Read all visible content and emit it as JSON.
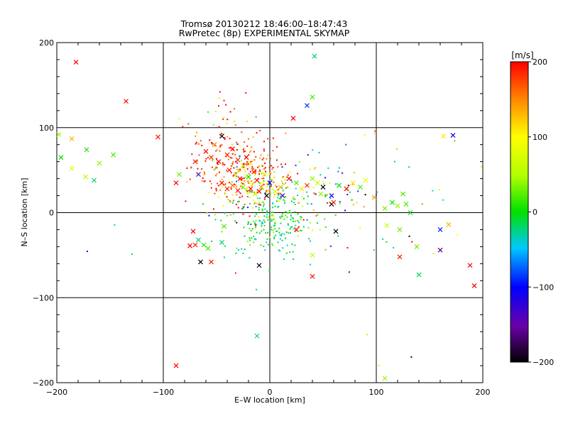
{
  "chart_data": {
    "type": "scatter",
    "title": "Tromsø 20130212 18:46:00–18:47:43",
    "subtitle": "RwPretec (8p) EXPERIMENTAL SKYMAP",
    "xlabel": "E–W location [km]",
    "ylabel": "N–S location [km]",
    "xlim": [
      -200,
      200
    ],
    "ylim": [
      -200,
      200
    ],
    "xticks": [
      "−200",
      "−100",
      "0",
      "100",
      "200"
    ],
    "yticks": [
      "−200",
      "−100",
      "0",
      "100",
      "200"
    ],
    "grid": true,
    "colorbar": {
      "label": "[m/s]",
      "range": [
        -200,
        200
      ],
      "ticks": [
        "200",
        "100",
        "0",
        "−100",
        "−200"
      ]
    },
    "crosses": [
      {
        "x": -182,
        "y": 177,
        "v": 200
      },
      {
        "x": -135,
        "y": 131,
        "v": 200
      },
      {
        "x": 42,
        "y": 184,
        "v": -20
      },
      {
        "x": 40,
        "y": 136,
        "v": 20
      },
      {
        "x": 35,
        "y": 126,
        "v": -90
      },
      {
        "x": 22,
        "y": 111,
        "v": 200
      },
      {
        "x": -198,
        "y": 92,
        "v": 40
      },
      {
        "x": -186,
        "y": 87,
        "v": 130
      },
      {
        "x": -105,
        "y": 89,
        "v": 190
      },
      {
        "x": 172,
        "y": 91,
        "v": -110
      },
      {
        "x": 163,
        "y": 90,
        "v": 110
      },
      {
        "x": -172,
        "y": 74,
        "v": 10
      },
      {
        "x": -196,
        "y": 65,
        "v": 0
      },
      {
        "x": -147,
        "y": 68,
        "v": 20
      },
      {
        "x": -160,
        "y": 58,
        "v": 40
      },
      {
        "x": -173,
        "y": 42,
        "v": 60
      },
      {
        "x": -165,
        "y": 38,
        "v": -20
      },
      {
        "x": -186,
        "y": 52,
        "v": 80
      },
      {
        "x": -85,
        "y": 45,
        "v": 30
      },
      {
        "x": -88,
        "y": 35,
        "v": 200
      },
      {
        "x": -67,
        "y": 45,
        "v": -160
      },
      {
        "x": -70,
        "y": 60,
        "v": 190
      },
      {
        "x": -60,
        "y": 72,
        "v": 200
      },
      {
        "x": -52,
        "y": 80,
        "v": 150
      },
      {
        "x": -45,
        "y": 90,
        "v": -200
      },
      {
        "x": -55,
        "y": 65,
        "v": 180
      },
      {
        "x": -48,
        "y": 60,
        "v": 200
      },
      {
        "x": -40,
        "y": 68,
        "v": 190
      },
      {
        "x": -35,
        "y": 75,
        "v": 200
      },
      {
        "x": -30,
        "y": 62,
        "v": 190
      },
      {
        "x": -25,
        "y": 55,
        "v": 60
      },
      {
        "x": -22,
        "y": 65,
        "v": 200
      },
      {
        "x": -18,
        "y": 58,
        "v": 110
      },
      {
        "x": -38,
        "y": 50,
        "v": 200
      },
      {
        "x": -32,
        "y": 45,
        "v": 120
      },
      {
        "x": -28,
        "y": 40,
        "v": 200
      },
      {
        "x": -20,
        "y": 42,
        "v": 0
      },
      {
        "x": -15,
        "y": 48,
        "v": 190
      },
      {
        "x": -12,
        "y": 38,
        "v": 200
      },
      {
        "x": -8,
        "y": 30,
        "v": 140
      },
      {
        "x": -5,
        "y": 45,
        "v": 60
      },
      {
        "x": -45,
        "y": 35,
        "v": 200
      },
      {
        "x": -40,
        "y": 28,
        "v": 190
      },
      {
        "x": -35,
        "y": 32,
        "v": 160
      },
      {
        "x": -30,
        "y": 26,
        "v": 200
      },
      {
        "x": -25,
        "y": 30,
        "v": 30
      },
      {
        "x": -18,
        "y": 28,
        "v": 200
      },
      {
        "x": -14,
        "y": 22,
        "v": 50
      },
      {
        "x": -10,
        "y": 25,
        "v": 200
      },
      {
        "x": -3,
        "y": 20,
        "v": -200
      },
      {
        "x": 0,
        "y": 35,
        "v": -100
      },
      {
        "x": 5,
        "y": 25,
        "v": 60
      },
      {
        "x": 10,
        "y": 30,
        "v": 130
      },
      {
        "x": 12,
        "y": 20,
        "v": -130
      },
      {
        "x": 18,
        "y": 40,
        "v": 200
      },
      {
        "x": 25,
        "y": 35,
        "v": 20
      },
      {
        "x": 30,
        "y": 28,
        "v": 110
      },
      {
        "x": 35,
        "y": 32,
        "v": 180
      },
      {
        "x": 40,
        "y": 40,
        "v": 40
      },
      {
        "x": 45,
        "y": 35,
        "v": 60
      },
      {
        "x": 50,
        "y": 30,
        "v": -200
      },
      {
        "x": 48,
        "y": 22,
        "v": 40
      },
      {
        "x": 58,
        "y": 20,
        "v": -110
      },
      {
        "x": 65,
        "y": 32,
        "v": 0
      },
      {
        "x": 72,
        "y": 28,
        "v": 200
      },
      {
        "x": 78,
        "y": 35,
        "v": 110
      },
      {
        "x": 85,
        "y": 30,
        "v": 20
      },
      {
        "x": 90,
        "y": 38,
        "v": 80
      },
      {
        "x": 98,
        "y": 18,
        "v": 140
      },
      {
        "x": 108,
        "y": 5,
        "v": 30
      },
      {
        "x": 115,
        "y": 12,
        "v": 0
      },
      {
        "x": 120,
        "y": 8,
        "v": 40
      },
      {
        "x": 125,
        "y": 22,
        "v": 20
      },
      {
        "x": 128,
        "y": 10,
        "v": 20
      },
      {
        "x": 132,
        "y": 0,
        "v": 0
      },
      {
        "x": 110,
        "y": -15,
        "v": 70
      },
      {
        "x": 122,
        "y": -20,
        "v": 30
      },
      {
        "x": 138,
        "y": -40,
        "v": 30
      },
      {
        "x": 168,
        "y": -14,
        "v": 130
      },
      {
        "x": 160,
        "y": -20,
        "v": -90
      },
      {
        "x": 160,
        "y": -44,
        "v": -160
      },
      {
        "x": 122,
        "y": -52,
        "v": 190
      },
      {
        "x": 140,
        "y": -73,
        "v": -20
      },
      {
        "x": 188,
        "y": -62,
        "v": 200
      },
      {
        "x": 192,
        "y": -86,
        "v": 200
      },
      {
        "x": 40,
        "y": -50,
        "v": 60
      },
      {
        "x": 40,
        "y": -75,
        "v": 190
      },
      {
        "x": 25,
        "y": -20,
        "v": 200
      },
      {
        "x": 62,
        "y": -22,
        "v": -200
      },
      {
        "x": -10,
        "y": -62,
        "v": -200
      },
      {
        "x": -72,
        "y": -22,
        "v": 200
      },
      {
        "x": -67,
        "y": -32,
        "v": -20
      },
      {
        "x": -62,
        "y": -38,
        "v": 10
      },
      {
        "x": -58,
        "y": -42,
        "v": 20
      },
      {
        "x": -70,
        "y": -38,
        "v": 190
      },
      {
        "x": -75,
        "y": -39,
        "v": 200
      },
      {
        "x": -65,
        "y": -58,
        "v": -200
      },
      {
        "x": -55,
        "y": -58,
        "v": 190
      },
      {
        "x": -43,
        "y": -16,
        "v": 20
      },
      {
        "x": -45,
        "y": -35,
        "v": -20
      },
      {
        "x": -88,
        "y": -180,
        "v": 200
      },
      {
        "x": -12,
        "y": -145,
        "v": -20
      },
      {
        "x": 108,
        "y": -195,
        "v": 40
      },
      {
        "x": 58,
        "y": 10,
        "v": -200
      },
      {
        "x": 60,
        "y": 12,
        "v": 190
      }
    ],
    "dot_regions": [
      {
        "cx": -30,
        "cy": 55,
        "sx": 22,
        "sy": 22,
        "n": 170,
        "v": 185,
        "vs": 35
      },
      {
        "cx": -18,
        "cy": 35,
        "sx": 18,
        "sy": 14,
        "n": 130,
        "v": 120,
        "vs": 80
      },
      {
        "cx": 0,
        "cy": -10,
        "sx": 22,
        "sy": 20,
        "n": 220,
        "v": -10,
        "vs": 25
      },
      {
        "cx": 20,
        "cy": 25,
        "sx": 32,
        "sy": 20,
        "n": 90,
        "v": 40,
        "vs": 100
      },
      {
        "cx": -50,
        "cy": 100,
        "sx": 18,
        "sy": 25,
        "n": 40,
        "v": 150,
        "vs": 60
      },
      {
        "cx": 80,
        "cy": 0,
        "sx": 80,
        "sy": 60,
        "n": 70,
        "v": 20,
        "vs": 120
      }
    ]
  }
}
